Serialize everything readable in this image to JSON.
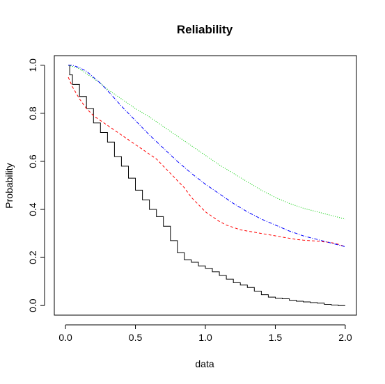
{
  "chart_data": {
    "type": "line",
    "title": "Reliability",
    "xlabel": "data",
    "ylabel": "Probability",
    "xlim": [
      -0.08,
      2.08
    ],
    "ylim": [
      -0.04,
      1.04
    ],
    "x_ticks": [
      "0.0",
      "0.5",
      "1.0",
      "1.5",
      "2.0"
    ],
    "x_tick_values": [
      0,
      0.5,
      1,
      1.5,
      2
    ],
    "y_ticks": [
      "0.0",
      "0.2",
      "0.4",
      "0.6",
      "0.8",
      "1.0"
    ],
    "y_tick_values": [
      0,
      0.2,
      0.4,
      0.6,
      0.8,
      1
    ],
    "grid": false,
    "legend": "none",
    "series": [
      {
        "color": "#000000",
        "style": "solid",
        "step": true,
        "points": [
          [
            0.02,
            1.0
          ],
          [
            0.03,
            0.96
          ],
          [
            0.05,
            0.92
          ],
          [
            0.1,
            0.87
          ],
          [
            0.15,
            0.82
          ],
          [
            0.2,
            0.76
          ],
          [
            0.25,
            0.72
          ],
          [
            0.3,
            0.68
          ],
          [
            0.35,
            0.62
          ],
          [
            0.4,
            0.58
          ],
          [
            0.45,
            0.53
          ],
          [
            0.5,
            0.48
          ],
          [
            0.55,
            0.44
          ],
          [
            0.6,
            0.4
          ],
          [
            0.65,
            0.37
          ],
          [
            0.7,
            0.33
          ],
          [
            0.75,
            0.27
          ],
          [
            0.8,
            0.22
          ],
          [
            0.85,
            0.19
          ],
          [
            0.9,
            0.18
          ],
          [
            0.95,
            0.165
          ],
          [
            1.0,
            0.155
          ],
          [
            1.05,
            0.14
          ],
          [
            1.1,
            0.125
          ],
          [
            1.15,
            0.11
          ],
          [
            1.2,
            0.095
          ],
          [
            1.25,
            0.085
          ],
          [
            1.3,
            0.075
          ],
          [
            1.35,
            0.06
          ],
          [
            1.4,
            0.045
          ],
          [
            1.45,
            0.035
          ],
          [
            1.5,
            0.03
          ],
          [
            1.55,
            0.028
          ],
          [
            1.6,
            0.022
          ],
          [
            1.65,
            0.018
          ],
          [
            1.7,
            0.015
          ],
          [
            1.75,
            0.012
          ],
          [
            1.8,
            0.01
          ],
          [
            1.85,
            0.005
          ],
          [
            1.9,
            0.002
          ],
          [
            1.95,
            0.0
          ],
          [
            2.0,
            0.0
          ]
        ]
      },
      {
        "color": "#ff0000",
        "style": "dashed",
        "step": false,
        "points": [
          [
            0.02,
            0.95
          ],
          [
            0.05,
            0.91
          ],
          [
            0.1,
            0.86
          ],
          [
            0.15,
            0.82
          ],
          [
            0.2,
            0.79
          ],
          [
            0.25,
            0.77
          ],
          [
            0.3,
            0.75
          ],
          [
            0.35,
            0.73
          ],
          [
            0.4,
            0.71
          ],
          [
            0.45,
            0.69
          ],
          [
            0.5,
            0.67
          ],
          [
            0.55,
            0.65
          ],
          [
            0.6,
            0.63
          ],
          [
            0.65,
            0.61
          ],
          [
            0.7,
            0.58
          ],
          [
            0.75,
            0.55
          ],
          [
            0.8,
            0.52
          ],
          [
            0.85,
            0.49
          ],
          [
            0.9,
            0.45
          ],
          [
            0.95,
            0.42
          ],
          [
            1.0,
            0.39
          ],
          [
            1.05,
            0.37
          ],
          [
            1.1,
            0.35
          ],
          [
            1.15,
            0.335
          ],
          [
            1.2,
            0.325
          ],
          [
            1.25,
            0.315
          ],
          [
            1.3,
            0.31
          ],
          [
            1.35,
            0.305
          ],
          [
            1.4,
            0.3
          ],
          [
            1.45,
            0.295
          ],
          [
            1.5,
            0.29
          ],
          [
            1.55,
            0.285
          ],
          [
            1.6,
            0.28
          ],
          [
            1.65,
            0.275
          ],
          [
            1.7,
            0.272
          ],
          [
            1.75,
            0.27
          ],
          [
            1.8,
            0.268
          ],
          [
            1.85,
            0.265
          ],
          [
            1.9,
            0.262
          ],
          [
            1.95,
            0.255
          ],
          [
            2.0,
            0.245
          ]
        ]
      },
      {
        "color": "#00cc00",
        "style": "dotted",
        "step": false,
        "points": [
          [
            0.02,
            1.0
          ],
          [
            0.05,
            0.995
          ],
          [
            0.1,
            0.985
          ],
          [
            0.15,
            0.965
          ],
          [
            0.2,
            0.945
          ],
          [
            0.25,
            0.925
          ],
          [
            0.3,
            0.9
          ],
          [
            0.4,
            0.86
          ],
          [
            0.5,
            0.82
          ],
          [
            0.6,
            0.785
          ],
          [
            0.7,
            0.745
          ],
          [
            0.8,
            0.705
          ],
          [
            0.9,
            0.665
          ],
          [
            1.0,
            0.625
          ],
          [
            1.1,
            0.585
          ],
          [
            1.2,
            0.55
          ],
          [
            1.3,
            0.515
          ],
          [
            1.4,
            0.48
          ],
          [
            1.5,
            0.45
          ],
          [
            1.6,
            0.425
          ],
          [
            1.7,
            0.405
          ],
          [
            1.8,
            0.39
          ],
          [
            1.9,
            0.375
          ],
          [
            2.0,
            0.36
          ]
        ]
      },
      {
        "color": "#0000ff",
        "style": "dashdot",
        "step": false,
        "points": [
          [
            0.02,
            1.0
          ],
          [
            0.05,
            1.0
          ],
          [
            0.1,
            0.99
          ],
          [
            0.15,
            0.975
          ],
          [
            0.2,
            0.95
          ],
          [
            0.25,
            0.925
          ],
          [
            0.3,
            0.895
          ],
          [
            0.4,
            0.83
          ],
          [
            0.5,
            0.77
          ],
          [
            0.6,
            0.71
          ],
          [
            0.7,
            0.655
          ],
          [
            0.8,
            0.6
          ],
          [
            0.9,
            0.55
          ],
          [
            1.0,
            0.505
          ],
          [
            1.1,
            0.465
          ],
          [
            1.2,
            0.425
          ],
          [
            1.3,
            0.39
          ],
          [
            1.4,
            0.36
          ],
          [
            1.5,
            0.335
          ],
          [
            1.6,
            0.31
          ],
          [
            1.7,
            0.29
          ],
          [
            1.8,
            0.275
          ],
          [
            1.9,
            0.26
          ],
          [
            2.0,
            0.245
          ]
        ]
      }
    ]
  }
}
